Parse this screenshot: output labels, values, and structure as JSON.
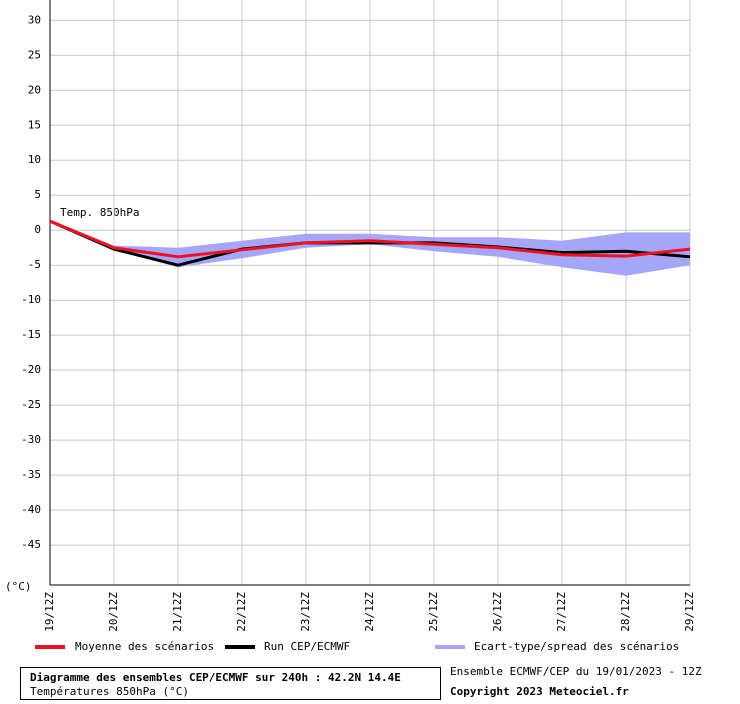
{
  "chart_data": {
    "type": "line",
    "annotation": "Temp. 850hPa",
    "y_unit_label": "(°C)",
    "categories": [
      "19/12Z",
      "20/12Z",
      "21/12Z",
      "22/12Z",
      "23/12Z",
      "24/12Z",
      "25/12Z",
      "26/12Z",
      "27/12Z",
      "28/12Z",
      "29/12Z"
    ],
    "spread": {
      "name": "Ecart-type/spread des scénarios",
      "color": "#a6a6f8",
      "upper": [
        1.5,
        -2.2,
        -2.5,
        -1.5,
        -0.5,
        -0.5,
        -1,
        -1,
        -1.5,
        -0.3,
        -0.3
      ],
      "lower": [
        1.2,
        -2.8,
        -5.3,
        -4,
        -2.5,
        -2,
        -3,
        -3.8,
        -5.3,
        -6.5,
        -5
      ]
    },
    "series": [
      {
        "name": "Moyenne des scénarios",
        "color": "#ee1122",
        "values": [
          1.3,
          -2.5,
          -3.8,
          -2.8,
          -1.8,
          -1.5,
          -2,
          -2.5,
          -3.5,
          -3.7,
          -2.7
        ]
      },
      {
        "name": "Run CEP/ECMWF",
        "color": "#000000",
        "values": [
          1.3,
          -2.7,
          -5,
          -2.7,
          -1.8,
          -1.8,
          -1.8,
          -2.4,
          -3.2,
          -3,
          -3.8
        ]
      }
    ],
    "ylim": [
      -50.7,
      32.9
    ],
    "yticks": [
      30,
      25,
      20,
      15,
      10,
      5,
      0,
      -5,
      -10,
      -15,
      -20,
      -25,
      -30,
      -35,
      -40,
      -45
    ],
    "grid": true,
    "footer": {
      "title": "Diagramme des ensembles CEP/ECMWF sur 240h : 42.2N 14.4E",
      "subtitle": "Températures 850hPa (°C)",
      "run": "Ensemble ECMWF/CEP du 19/01/2023 - 12Z",
      "copyright": "Copyright 2023 Meteociel.fr"
    }
  }
}
